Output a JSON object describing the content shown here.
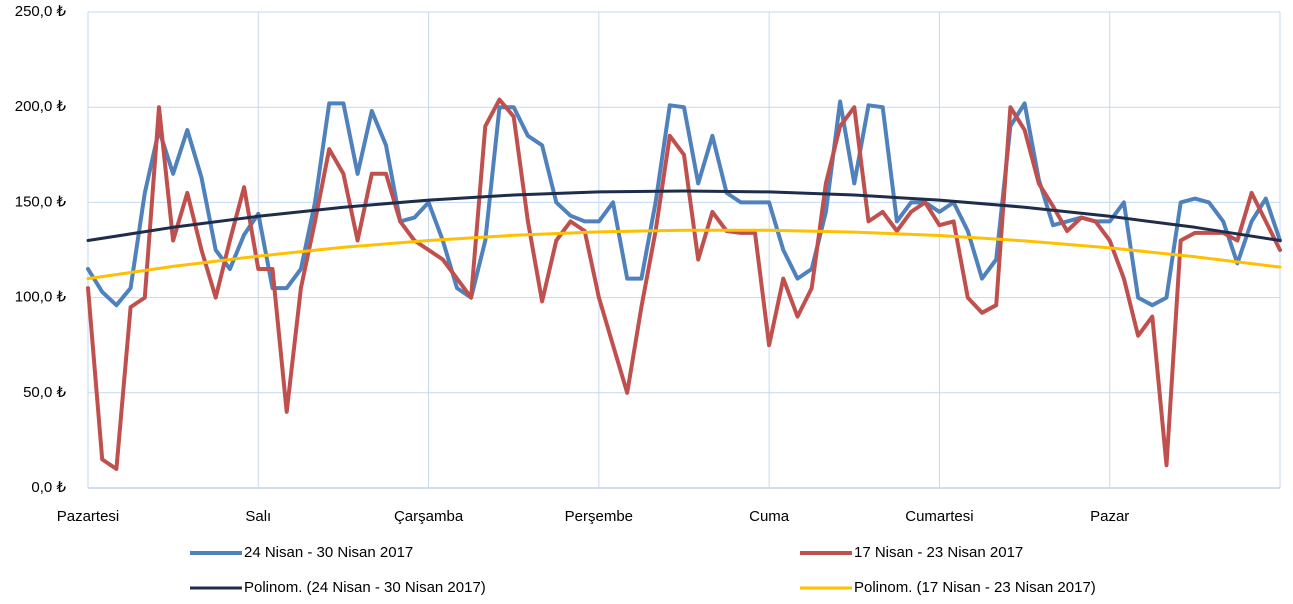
{
  "chart_data": {
    "type": "line",
    "x": [
      0,
      2,
      4,
      6,
      8,
      10,
      12,
      14,
      16,
      18,
      20,
      22,
      24,
      26,
      28,
      30,
      32,
      34,
      36,
      38,
      40,
      42,
      44,
      46,
      48,
      50,
      52,
      54,
      56,
      58,
      60,
      62,
      64,
      66,
      68,
      70,
      72,
      74,
      76,
      78,
      80,
      82,
      84,
      86,
      88,
      90,
      92,
      94,
      96,
      98,
      100,
      102,
      104,
      106,
      108,
      110,
      112,
      114,
      116,
      118,
      120,
      122,
      124,
      126,
      128,
      130,
      132,
      134,
      136,
      138,
      140,
      142,
      144,
      146,
      148,
      150,
      152,
      154,
      156,
      158,
      160,
      162,
      164,
      166,
      168
    ],
    "series": [
      {
        "name": "24 Nisan - 30 Nisan 2017",
        "color": "#4f81bd",
        "values": [
          115,
          103,
          96,
          105,
          155,
          188,
          165,
          188,
          163,
          125,
          115,
          133,
          144,
          105,
          105,
          115,
          150,
          202,
          202,
          165,
          198,
          180,
          140,
          142,
          150,
          130,
          105,
          100,
          130,
          200,
          200,
          185,
          180,
          150,
          143,
          140,
          140,
          150,
          110,
          110,
          150,
          201,
          200,
          160,
          185,
          155,
          150,
          150,
          150,
          125,
          110,
          115,
          145,
          203,
          160,
          201,
          200,
          140,
          150,
          150,
          145,
          150,
          135,
          110,
          120,
          190,
          202,
          162,
          138,
          140,
          142,
          140,
          140,
          150,
          100,
          96,
          100,
          150,
          152,
          150,
          140,
          118,
          140,
          152,
          130
        ]
      },
      {
        "name": "17 Nisan - 23 Nisan 2017",
        "color": "#c0504d",
        "values": [
          105,
          15,
          10,
          95,
          100,
          200,
          130,
          155,
          125,
          100,
          130,
          158,
          115,
          115,
          40,
          105,
          140,
          178,
          165,
          130,
          165,
          165,
          140,
          130,
          125,
          120,
          110,
          100,
          190,
          204,
          195,
          140,
          98,
          130,
          140,
          135,
          100,
          75,
          50,
          95,
          135,
          185,
          175,
          120,
          145,
          135,
          134,
          134,
          75,
          110,
          90,
          105,
          160,
          190,
          200,
          140,
          145,
          135,
          145,
          150,
          138,
          140,
          100,
          92,
          96,
          200,
          188,
          160,
          148,
          135,
          142,
          140,
          130,
          110,
          80,
          90,
          12,
          130,
          134,
          134,
          134,
          130,
          155,
          140,
          125
        ]
      },
      {
        "name": "Polinom. (24 Nisan - 30 Nisan 2017)",
        "color": "#1f2d4a",
        "trend": true,
        "x": [
          0,
          12,
          24,
          36,
          48,
          60,
          72,
          84,
          96,
          108,
          120,
          132,
          144,
          156,
          168
        ],
        "values": [
          130,
          136.9,
          142.7,
          147.5,
          151.2,
          153.9,
          155.5,
          156,
          155.5,
          153.9,
          151.2,
          147.5,
          142.7,
          136.9,
          130
        ]
      },
      {
        "name": "Polinom. (17 Nisan - 23 Nisan 2017)",
        "color": "#ffc000",
        "trend": true,
        "x": [
          0,
          12,
          24,
          36,
          48,
          60,
          72,
          84,
          96,
          108,
          120,
          132,
          144,
          156,
          168
        ],
        "values": [
          110,
          116.4,
          121.8,
          126.4,
          130,
          132.7,
          134.5,
          135.4,
          135.4,
          134.4,
          132.6,
          129.8,
          126.1,
          121.5,
          116
        ]
      }
    ],
    "xlim": [
      0,
      168
    ],
    "xticks": [
      {
        "value": 0,
        "label": "Pazartesi"
      },
      {
        "value": 24,
        "label": "Salı"
      },
      {
        "value": 48,
        "label": "Çarşamba"
      },
      {
        "value": 72,
        "label": "Perşembe"
      },
      {
        "value": 96,
        "label": "Cuma"
      },
      {
        "value": 120,
        "label": "Cumartesi"
      },
      {
        "value": 144,
        "label": "Pazar"
      }
    ],
    "ylim": [
      0,
      250
    ],
    "yticks": [
      {
        "value": 0,
        "label": "0,0 ₺"
      },
      {
        "value": 50,
        "label": "50,0 ₺"
      },
      {
        "value": 100,
        "label": "100,0 ₺"
      },
      {
        "value": 150,
        "label": "150,0 ₺"
      },
      {
        "value": 200,
        "label": "200,0 ₺"
      },
      {
        "value": 250,
        "label": "250,0 ₺"
      }
    ],
    "grid": true,
    "legend": "bottom"
  }
}
